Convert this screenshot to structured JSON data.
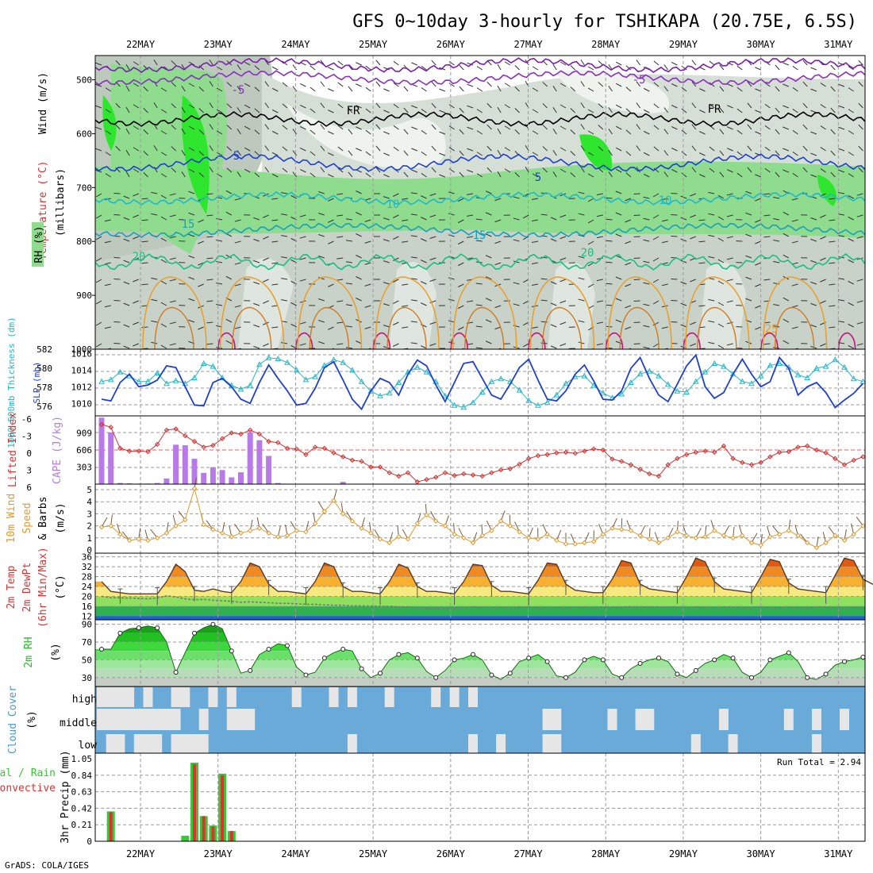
{
  "title": "GFS 0~10day 3-hourly for TSHIKAPA (20.75E, 6.5S)",
  "credit": "GrADS: COLA/IGES",
  "dates": [
    "22MAY",
    "23MAY",
    "24MAY",
    "25MAY",
    "26MAY",
    "27MAY",
    "28MAY",
    "29MAY",
    "30MAY",
    "31MAY"
  ],
  "colors": {
    "rh_light": "#c8d2c8",
    "rh_mid": "#8fdc8f",
    "rh_dark": "#2ee62e",
    "slp": "#1f3fd0",
    "thickness": "#22b8c8",
    "lifted": "#d03030",
    "cape": "#b87ae8",
    "wind_speed": "#e09a30",
    "cloud": "#6aaad8",
    "cloud_clear": "#e6e6e6",
    "precip_total": "#37c837",
    "precip_conv": "#e03030"
  },
  "panels": {
    "upper_air": {
      "ylabel_parts": [
        "Wind (m/s)",
        "Temperature (°C)",
        "RH (%)",
        "(millibars)"
      ],
      "yticks": [
        "500",
        "600",
        "700",
        "800",
        "900",
        "1000"
      ],
      "isotherm_labels": [
        "-5",
        "-5",
        "FR",
        "FR",
        "5",
        "5",
        "10",
        "10",
        "15",
        "15",
        "20",
        "20",
        "25"
      ]
    },
    "slp_thickness": {
      "ylabel_left": "1000-500mb Thickness (dm)",
      "ylabel_right": "SLP (mb)",
      "yticks_left": [
        "576",
        "578",
        "580",
        "582"
      ],
      "yticks_right": [
        "1010",
        "1012",
        "1014",
        "1016"
      ]
    },
    "cape_li": {
      "ylabel_left": "Lifted Index",
      "ylabel_right": "CAPE (J/kg)",
      "yticks_left": [
        "-6",
        "-3",
        "0",
        "3",
        "6"
      ],
      "yticks_right": [
        "909",
        "606",
        "303"
      ]
    },
    "wind10m": {
      "ylabel_parts": [
        "10m Wind",
        "Speed",
        "& Barbs",
        "(m/s)"
      ],
      "yticks": [
        "0",
        "1",
        "2",
        "3",
        "4",
        "5"
      ]
    },
    "temp2m": {
      "ylabel_parts": [
        "2m Temp",
        "2m DewPt",
        "(6hr Min/Max)",
        "(°C)"
      ],
      "yticks": [
        "12",
        "16",
        "20",
        "24",
        "28",
        "32",
        "36"
      ]
    },
    "rh2m": {
      "ylabel_parts": [
        "2m RH",
        "(%)"
      ],
      "yticks": [
        "30",
        "50",
        "70",
        "90"
      ]
    },
    "cloud": {
      "ylabel_parts": [
        "Cloud Cover",
        "(%)"
      ],
      "levels": [
        "high",
        "middle",
        "low"
      ]
    },
    "precip": {
      "ylabel_parts": [
        "Total / Rain",
        "Convective",
        "3hr Precip (mm)"
      ],
      "yticks": [
        "0",
        "0.21",
        "0.42",
        "0.63",
        "0.84",
        "1.05"
      ],
      "run_total": "Run Total =  2.94"
    }
  },
  "chart_data": [
    {
      "type": "line",
      "title": "1000-500mb Thickness (dm) / SLP (mb)",
      "x_unit": "3-hour step from 21MAY 12Z",
      "series": [
        {
          "name": "SLP (mb)",
          "axis": "right",
          "ylim": [
            1008.5,
            1016.5
          ],
          "values": [
            1010.5,
            1010.3,
            1012.5,
            1013.5,
            1012,
            1012.2,
            1012.8,
            1014.5,
            1014.3,
            1012,
            1009.8,
            1009.7,
            1012.5,
            1013,
            1012,
            1010.5,
            1010,
            1012.5,
            1014.6,
            1013,
            1011.5,
            1009.8,
            1010,
            1011.8,
            1014.3,
            1015,
            1012.8,
            1010.5,
            1009.3,
            1011.5,
            1013,
            1012.5,
            1011,
            1013.5,
            1015.2,
            1014.5,
            1012.2,
            1010.2,
            1012.5,
            1014.8,
            1015,
            1013,
            1011,
            1010.5,
            1012.3,
            1014.3,
            1015.3,
            1012.8,
            1010.5,
            1010.3,
            1011.5,
            1013.5,
            1014.6,
            1012.7,
            1010.5,
            1010.4,
            1011.5,
            1014.2,
            1015.5,
            1013,
            1011,
            1010.2,
            1012.3,
            1014.5,
            1015.8,
            1012,
            1010.6,
            1011.3,
            1013.5,
            1015.3,
            1013.5,
            1012,
            1012.6,
            1015.5,
            1014.2,
            1011,
            1012,
            1012.5,
            1011.3,
            1009.5,
            1010.4,
            1011.2,
            1012.4
          ]
        },
        {
          "name": "1000-500mb Thickness (dm)",
          "axis": "left",
          "ylim": [
            575,
            582
          ],
          "values": [
            578.6,
            578.8,
            579.6,
            579.2,
            578.6,
            578.6,
            579.5,
            578.4,
            578.7,
            578.4,
            579,
            580.5,
            580.2,
            579,
            578.2,
            577.8,
            578.2,
            580.4,
            581.1,
            581,
            580.6,
            579.8,
            578.8,
            579.1,
            580.3,
            580.9,
            580.6,
            579.8,
            578.6,
            577.6,
            577.1,
            577.4,
            578.5,
            579.6,
            580.1,
            579.6,
            578.6,
            577.1,
            576.1,
            575.9,
            576.4,
            577.5,
            578.6,
            578.9,
            578.6,
            577.7,
            576.6,
            576.1,
            576.4,
            577.2,
            578.4,
            579.1,
            579.2,
            578.2,
            577.4,
            576.9,
            577.3,
            578.5,
            579.4,
            579.7,
            579.2,
            578.3,
            577.6,
            577.5,
            578.6,
            579.6,
            580.5,
            580.2,
            579.4,
            578.6,
            578.4,
            579.2,
            580.3,
            580.5,
            580.1,
            579.3,
            579,
            580,
            580.2,
            580.9,
            580.1,
            578.9,
            578.6
          ]
        }
      ]
    },
    {
      "type": "bar",
      "title": "Lifted Index / CAPE (J/kg)",
      "series": [
        {
          "name": "CAPE (J/kg)",
          "ylim": [
            0,
            1212
          ],
          "values": [
            1180,
            920,
            20,
            15,
            10,
            10,
            20,
            100,
            700,
            690,
            450,
            200,
            300,
            250,
            120,
            210,
            920,
            780,
            500,
            20,
            0,
            0,
            0,
            0,
            0,
            0,
            40,
            0,
            0,
            0,
            0,
            0,
            0,
            0,
            0,
            0,
            0,
            0,
            0,
            0,
            0,
            0,
            0,
            0,
            0,
            0,
            0,
            0,
            0,
            0,
            0,
            0,
            0,
            0,
            0,
            0,
            0,
            0,
            0,
            0,
            0,
            0,
            0,
            0,
            0,
            0,
            0,
            0,
            0,
            0,
            0,
            0,
            0,
            0,
            0,
            0,
            0,
            0,
            0,
            0,
            0,
            0,
            0
          ]
        },
        {
          "name": "Lifted Index",
          "type": "line",
          "ylim": [
            6,
            -6
          ],
          "values": [
            -4.5,
            -4,
            -0.3,
            0.2,
            0.2,
            0.3,
            -1,
            -3.5,
            -3.7,
            -2.5,
            -1.5,
            -0.5,
            -0.8,
            -2,
            -3,
            -2.8,
            -3.5,
            -2.8,
            -1.5,
            -1.3,
            -0.3,
            -0.2,
            0.8,
            -0.5,
            -0.3,
            0.5,
            1.2,
            1.8,
            2,
            3,
            3,
            4,
            4.6,
            4,
            5.6,
            5.2,
            4.8,
            4,
            4.5,
            4.2,
            4.4,
            4.6,
            4,
            3.5,
            3.3,
            2.5,
            1.5,
            1,
            0.8,
            0.5,
            0.4,
            0.6,
            0.2,
            -0.2,
            0,
            1.6,
            2,
            2.6,
            3.4,
            4.2,
            4.6,
            2.6,
            1.5,
            0.8,
            0.4,
            0.2,
            0.4,
            -0.7,
            1.5,
            2.2,
            2.6,
            2.2,
            1.2,
            0.4,
            0.3,
            -0.5,
            -0.7,
            0,
            0.5,
            1.5,
            2.6,
            1.8,
            1.2
          ]
        }
      ]
    },
    {
      "type": "line",
      "title": "10m Wind Speed & Barbs (m/s)",
      "ylim": [
        0,
        5.3
      ],
      "series": [
        {
          "name": "10m Wind Speed",
          "values": [
            1.9,
            2.0,
            1.3,
            0.8,
            0.9,
            0.8,
            1.0,
            1.4,
            2.0,
            2.5,
            5.1,
            2.1,
            1.7,
            1.4,
            1.1,
            1.4,
            1.6,
            1.8,
            1.4,
            1.1,
            1.2,
            1.6,
            1.5,
            2.2,
            3.2,
            4.1,
            3.0,
            2.4,
            1.8,
            1.4,
            0.9,
            0.6,
            1.1,
            0.9,
            2.2,
            2.9,
            2.4,
            2.0,
            1.3,
            1.0,
            0.6,
            1.2,
            1.6,
            2.4,
            2.0,
            1.5,
            1.0,
            0.9,
            1.3,
            0.8,
            0.5,
            0.5,
            0.6,
            0.7,
            1.3,
            1.8,
            1.7,
            1.6,
            1.2,
            0.9,
            0.6,
            1.0,
            1.5,
            1.2,
            1.0,
            1.1,
            1.6,
            1.2,
            1.0,
            1.2,
            0.6,
            0.4,
            1.1,
            1.3,
            1.6,
            1.2,
            0.6,
            0.2,
            0.6,
            1.2,
            0.8,
            1.3,
            2.0
          ]
        }
      ]
    },
    {
      "type": "area",
      "title": "2m Temp / 2m DewPt (6hr Min/Max) (°C)",
      "ylim": [
        10.5,
        37.5
      ],
      "series": [
        {
          "name": "2m Temp",
          "values": [
            26,
            22,
            21.5,
            21,
            21,
            21,
            21,
            26,
            33,
            30,
            22.5,
            22,
            23,
            22,
            21.5,
            26,
            33.5,
            32,
            25,
            22,
            22,
            21.5,
            21,
            26,
            33.5,
            32,
            24,
            22,
            22,
            21.5,
            21,
            26,
            33,
            31.5,
            24,
            22,
            22,
            21.5,
            21,
            26,
            33,
            32.5,
            24.5,
            22,
            22,
            21.5,
            21,
            26.5,
            33.5,
            33,
            25,
            22.5,
            22,
            21.5,
            21.5,
            27,
            34.5,
            33.5,
            25,
            23,
            22.5,
            22,
            21.5,
            28,
            35.5,
            34,
            26,
            23,
            22.5,
            22,
            21.5,
            28,
            35,
            34,
            25.5,
            23,
            22.5,
            22,
            21.5,
            28.5,
            35.5,
            34.5,
            27,
            25,
            23.5
          ]
        },
        {
          "name": "2m DewPt",
          "values": [
            20,
            19.5,
            19.4,
            19.3,
            19.2,
            19,
            19.4,
            20.2,
            19.8,
            19,
            18.6,
            18.8,
            18.4,
            18.2,
            18,
            17.6,
            17.8,
            17.6,
            17.4,
            17.2,
            17.2,
            17,
            16.8,
            16.8,
            16.6,
            16.4,
            16.4,
            16.2,
            16.2,
            16.1,
            16,
            16,
            15.8,
            15.6,
            15.4,
            15.2,
            15.2,
            15,
            15.2,
            15.4,
            15.6,
            15.6,
            15.4,
            15.6,
            15.4,
            15.6,
            15.6,
            15.4,
            15.4,
            15.6,
            15.4,
            15.6,
            15.6,
            15.4,
            15.6,
            15.6,
            15.6,
            15.8,
            15.6,
            15.6,
            15.6,
            15.6,
            15.6,
            15.4,
            15.6,
            15.6,
            15.4,
            15.6,
            15.6,
            15.4,
            15.4,
            15.6,
            15.4,
            15.4,
            15.6,
            15.4,
            15.4,
            15.6,
            15.6,
            15.4,
            15.4,
            15.6,
            15.4
          ]
        }
      ]
    },
    {
      "type": "area",
      "title": "2m RH (%)",
      "ylim": [
        20,
        95
      ],
      "series": [
        {
          "name": "2m RH",
          "values": [
            62,
            62,
            80,
            85,
            86,
            88,
            86,
            70,
            36,
            58,
            80,
            86,
            90,
            85,
            60,
            35,
            38,
            56,
            62,
            68,
            66,
            42,
            33,
            36,
            52,
            58,
            62,
            60,
            40,
            30,
            35,
            50,
            56,
            58,
            52,
            37,
            30,
            38,
            50,
            52,
            56,
            50,
            33,
            28,
            35,
            48,
            52,
            56,
            48,
            32,
            30,
            36,
            50,
            54,
            50,
            34,
            30,
            40,
            46,
            50,
            52,
            48,
            34,
            30,
            38,
            46,
            50,
            56,
            52,
            36,
            30,
            36,
            50,
            54,
            58,
            48,
            30,
            28,
            34,
            44,
            48,
            50,
            53
          ]
        }
      ]
    },
    {
      "type": "bar",
      "title": "3hr Precip (mm)",
      "ylim": [
        0,
        1.05
      ],
      "note": "Run Total =  2.94",
      "series": [
        {
          "name": "Total / Rain",
          "values": [
            0,
            0.38,
            0,
            0,
            0,
            0,
            0,
            0,
            0,
            0.07,
            1.0,
            0.32,
            0.2,
            0.86,
            0.13,
            0,
            0,
            0,
            0,
            0,
            0,
            0,
            0,
            0,
            0,
            0,
            0,
            0,
            0,
            0,
            0,
            0,
            0,
            0,
            0,
            0,
            0,
            0,
            0,
            0,
            0,
            0,
            0,
            0,
            0,
            0,
            0,
            0,
            0,
            0,
            0,
            0,
            0,
            0,
            0,
            0,
            0,
            0,
            0,
            0,
            0,
            0,
            0,
            0,
            0,
            0,
            0,
            0,
            0,
            0,
            0,
            0,
            0,
            0,
            0,
            0,
            0,
            0,
            0,
            0,
            0,
            0,
            0
          ]
        },
        {
          "name": "Convective",
          "values": [
            0,
            0.37,
            0,
            0,
            0,
            0,
            0,
            0,
            0,
            0.0,
            0.98,
            0.32,
            0.19,
            0.84,
            0.13,
            0,
            0,
            0,
            0,
            0,
            0,
            0,
            0,
            0,
            0,
            0,
            0,
            0,
            0,
            0,
            0,
            0,
            0,
            0,
            0,
            0,
            0,
            0,
            0,
            0,
            0,
            0,
            0,
            0,
            0,
            0,
            0,
            0,
            0,
            0,
            0,
            0,
            0,
            0,
            0,
            0,
            0,
            0,
            0,
            0,
            0,
            0,
            0,
            0,
            0,
            0,
            0,
            0,
            0,
            0,
            0,
            0,
            0,
            0,
            0,
            0,
            0,
            0,
            0,
            0,
            0,
            0,
            0
          ]
        }
      ]
    }
  ]
}
